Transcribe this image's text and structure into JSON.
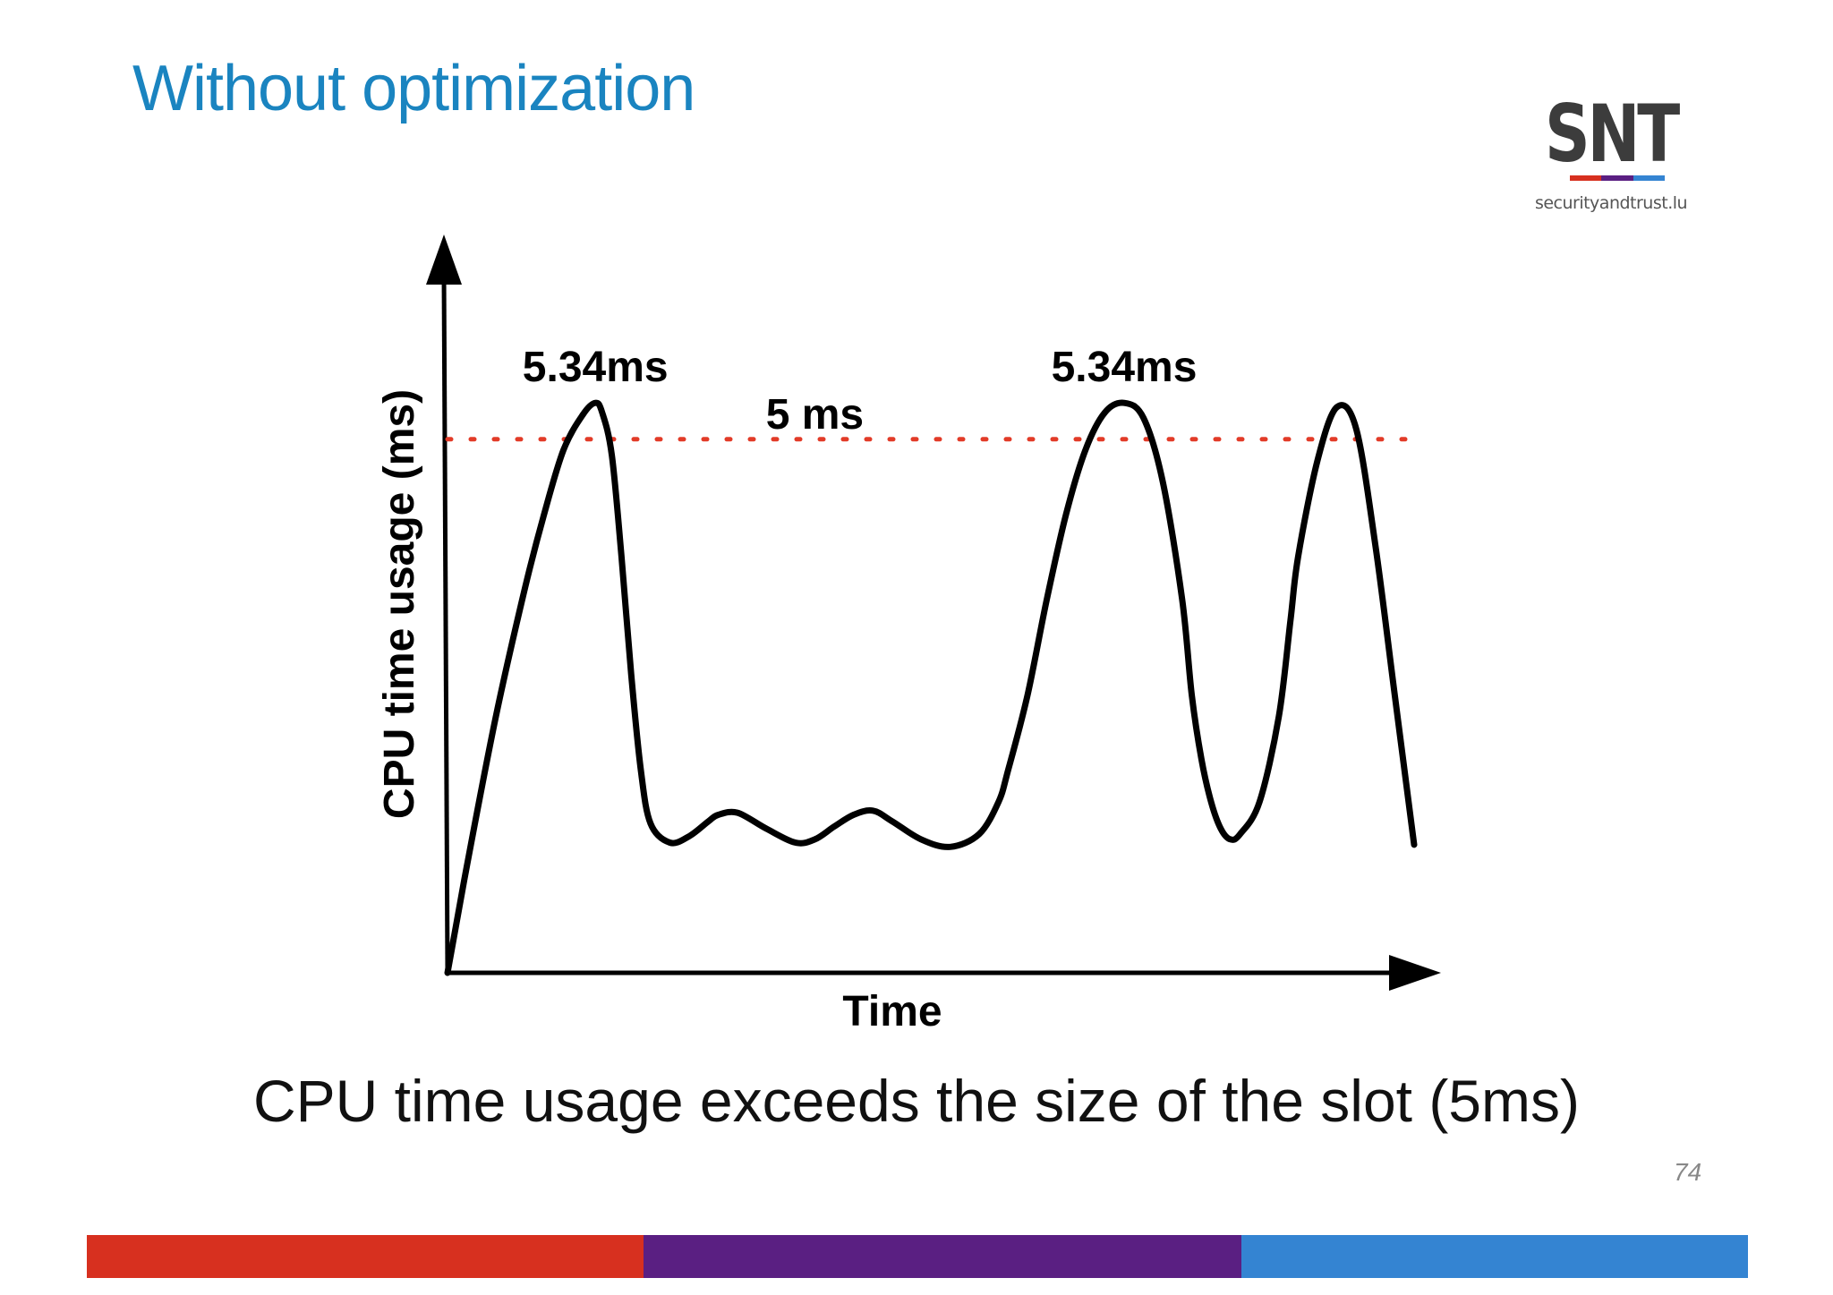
{
  "slide": {
    "title": "Without optimization",
    "caption": "CPU time usage exceeds the size of the slot (5ms)",
    "page_number": "74"
  },
  "logo": {
    "text": "SNT",
    "tagline": "securityandtrust.lu",
    "bar_colors": [
      "#d7301f",
      "#5a1f82",
      "#3484d2"
    ]
  },
  "colors": {
    "title": "#1a84c0",
    "curve": "#000000",
    "threshold": "#e23b28",
    "footer": [
      "#d7301f",
      "#5a1f82",
      "#3484d2"
    ]
  },
  "footer_segments": [
    0.335,
    0.36,
    0.305
  ],
  "chart_data": {
    "type": "line",
    "title": "",
    "xlabel": "Time",
    "ylabel": "CPU time usage (ms)",
    "xlim": [
      0,
      100
    ],
    "ylim": [
      0,
      6.6
    ],
    "grid": false,
    "series": [
      {
        "x": [
          0,
          2,
          5,
          8,
          10,
          12,
          14,
          15.3,
          16,
          17,
          18,
          19,
          20,
          21,
          23,
          25,
          27,
          28,
          30,
          33,
          36,
          38,
          40,
          42,
          44,
          46,
          49,
          52,
          55,
          57,
          58,
          60,
          62,
          64,
          66,
          68,
          70,
          72,
          74,
          76,
          77,
          78,
          79,
          80,
          81,
          82,
          84,
          86,
          87.2,
          88,
          90,
          92,
          94,
          96,
          98,
          100
        ],
        "y": [
          0,
          1.0,
          2.4,
          3.6,
          4.3,
          4.9,
          5.23,
          5.34,
          5.25,
          4.85,
          3.9,
          2.8,
          1.9,
          1.4,
          1.22,
          1.28,
          1.42,
          1.48,
          1.5,
          1.35,
          1.22,
          1.25,
          1.37,
          1.48,
          1.52,
          1.42,
          1.25,
          1.18,
          1.3,
          1.6,
          1.9,
          2.6,
          3.5,
          4.3,
          4.9,
          5.25,
          5.34,
          5.2,
          4.6,
          3.5,
          2.6,
          2.0,
          1.6,
          1.35,
          1.25,
          1.3,
          1.6,
          2.4,
          3.3,
          3.9,
          4.8,
          5.3,
          5.1,
          4.0,
          2.6,
          1.2
        ]
      }
    ],
    "threshold": {
      "value": 5,
      "label": "5 ms"
    },
    "peak_labels": [
      "5.34ms",
      "5.34ms"
    ]
  }
}
